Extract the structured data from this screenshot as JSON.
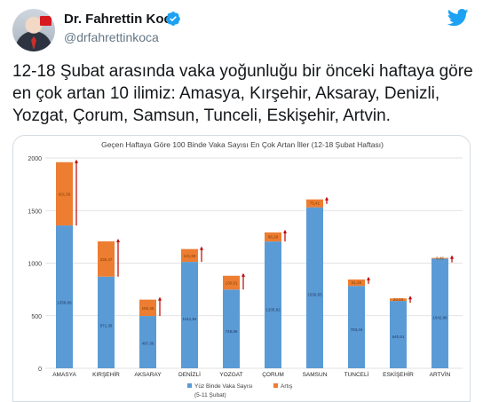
{
  "author": {
    "name": "Dr. Fahrettin Koca",
    "handle": "@drfahrettinkoca"
  },
  "tweet": {
    "text": "12-18 Şubat arasında vaka yoğunluğu bir önceki haftaya göre en çok artan 10 ilimiz: Amasya, Kırşehir, Aksaray, Denizli, Yozgat, Çorum, Samsun, Tunceli, Eskişehir, Artvin."
  },
  "icons": {
    "verified": "verified-badge-icon",
    "platform": "twitter-bird-icon"
  },
  "colors": {
    "base_bar": "#5b9bd5",
    "increase_bar": "#ed7d31",
    "arrow": "#c00000",
    "twitter_blue": "#1da1f2"
  },
  "chart_data": {
    "type": "bar",
    "title": "Geçen Haftaya Göre 100 Binde Vaka Sayısı En Çok Artan İller (12-18 Şubat Haftası)",
    "categories": [
      "AMASYA",
      "KIRŞEHİR",
      "AKSARAY",
      "DENİZLİ",
      "YOZGAT",
      "ÇORUM",
      "SAMSUN",
      "TUNCELİ",
      "ESKİŞEHİR",
      "ARTVİN"
    ],
    "stacked": true,
    "series": [
      {
        "name": "Yüz Binde Vaka Sayısı (5-11 Şubat)",
        "values": [
          1358.06,
          871.38,
          497.36,
          1011.84,
          748.86,
          1205.82,
          1530.55,
          783.44,
          640.61,
          1042.86
        ],
        "labels": [
          "1358,06",
          "871,38",
          "497,36",
          "1011,84",
          "748,86",
          "1205,82",
          "1530,55",
          "783,44",
          "640,61",
          "1042,86"
        ]
      },
      {
        "name": "Artış",
        "values": [
          601.59,
          335.47,
          155.45,
          121.88,
          130.91,
          86.29,
          75.41,
          61.25,
          24.04,
          6.45
        ],
        "labels": [
          "601,59",
          "335,47",
          "155,45",
          "121,88",
          "130,91",
          "86,29",
          "75,41",
          "61,25",
          "24,04",
          "6,45"
        ]
      }
    ],
    "legend": {
      "items": [
        "Yüz Binde Vaka Sayısı",
        "Artış"
      ],
      "subtitle": "(5-11 Şubat)",
      "placement": "bottom"
    },
    "ylim": [
      0,
      2000
    ],
    "yticks": [
      0,
      500,
      1000,
      1500,
      2000
    ],
    "grid": true
  }
}
